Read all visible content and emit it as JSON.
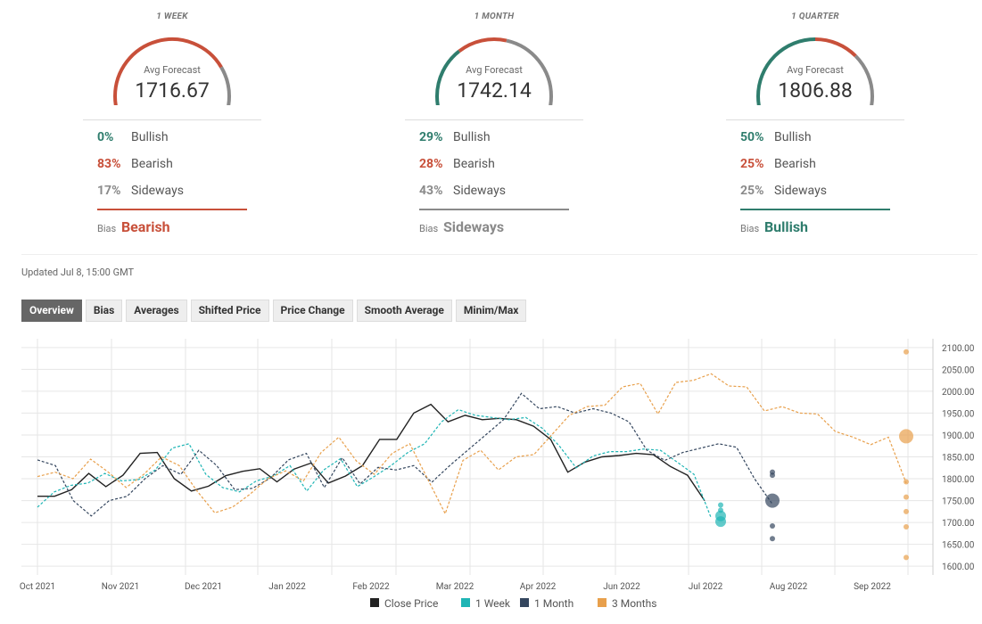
{
  "gauges": [
    {
      "period": "1 WEEK",
      "avg_label": "Avg Forecast",
      "avg": "1716.67",
      "bullish": "0%",
      "bearish": "83%",
      "sideways": "17%",
      "bullish_label": "Bullish",
      "bearish_label": "Bearish",
      "sideways_label": "Sideways",
      "bias_label": "Bias",
      "bias": "Bearish",
      "bias_color": "#c8503a"
    },
    {
      "period": "1 MONTH",
      "avg_label": "Avg Forecast",
      "avg": "1742.14",
      "bullish": "29%",
      "bearish": "28%",
      "sideways": "43%",
      "bullish_label": "Bullish",
      "bearish_label": "Bearish",
      "sideways_label": "Sideways",
      "bias_label": "Bias",
      "bias": "Sideways",
      "bias_color": "#8a8a8a"
    },
    {
      "period": "1 QUARTER",
      "avg_label": "Avg Forecast",
      "avg": "1806.88",
      "bullish": "50%",
      "bearish": "25%",
      "sideways": "25%",
      "bullish_label": "Bullish",
      "bearish_label": "Bearish",
      "sideways_label": "Sideways",
      "bias_label": "Bias",
      "bias": "Bullish",
      "bias_color": "#2f7d6d"
    }
  ],
  "colors": {
    "bullish": "#2f7d6d",
    "bearish": "#c8503a",
    "sideways": "#8a8a8a"
  },
  "updated": "Updated Jul 8, 15:00 GMT",
  "tabs": [
    "Overview",
    "Bias",
    "Averages",
    "Shifted Price",
    "Price Change",
    "Smooth Average",
    "Minim/Max"
  ],
  "legend": [
    {
      "label": "Close Price",
      "color": "#222222"
    },
    {
      "label": "1 Week",
      "color": "#1fb5b5"
    },
    {
      "label": "1 Month",
      "color": "#34465e"
    },
    {
      "label": "3 Months",
      "color": "#e8a04c"
    }
  ],
  "chart_data": {
    "type": "line",
    "ylim": [
      1580,
      2120
    ],
    "yticks": [
      "2100.00",
      "2050.00",
      "2000.00",
      "1950.00",
      "1900.00",
      "1850.00",
      "1800.00",
      "1750.00",
      "1700.00",
      "1650.00",
      "1600.00"
    ],
    "xticks": [
      "Oct 2021",
      "Nov 2021",
      "Dec 2021",
      "Jan 2022",
      "Feb 2022",
      "Mar 2022",
      "Apr 2022",
      "Jun 2022",
      "Jul 2022",
      "Aug 2022",
      "Sep 2022"
    ],
    "series": [
      {
        "name": "Close Price",
        "values": [
          1760,
          1760,
          1775,
          1812,
          1782,
          1808,
          1858,
          1860,
          1800,
          1772,
          1783,
          1807,
          1817,
          1823,
          1793,
          1822,
          1836,
          1790,
          1806,
          1830,
          1890,
          1890,
          1950,
          1970,
          1930,
          1945,
          1935,
          1938,
          1935,
          1920,
          1890,
          1815,
          1838,
          1850,
          1853,
          1858,
          1855,
          1828,
          1808,
          1750
        ]
      },
      {
        "name": "1 Week",
        "values": [
          1735,
          1770,
          1785,
          1790,
          1812,
          1795,
          1798,
          1820,
          1870,
          1880,
          1810,
          1780,
          1770,
          1795,
          1806,
          1830,
          1772,
          1820,
          1846,
          1782,
          1805,
          1830,
          1860,
          1880,
          1930,
          1958,
          1945,
          1940,
          1935,
          1940,
          1915,
          1875,
          1825,
          1852,
          1862,
          1862,
          1868,
          1865,
          1838,
          1810,
          1712
        ]
      },
      {
        "name": "1 Month",
        "values": [
          1843,
          1830,
          1750,
          1715,
          1750,
          1760,
          1800,
          1830,
          1810,
          1865,
          1830,
          1775,
          1778,
          1802,
          1843,
          1858,
          1780,
          1848,
          1788,
          1826,
          1820,
          1830,
          1792,
          1830,
          1865,
          1900,
          1935,
          1995,
          1960,
          1965,
          1950,
          1960,
          1950,
          1930,
          1865,
          1842,
          1860,
          1870,
          1880,
          1872,
          1800,
          1742
        ]
      },
      {
        "name": "3 Months",
        "values": [
          1805,
          1815,
          1800,
          1845,
          1815,
          1780,
          1810,
          1850,
          1830,
          1772,
          1722,
          1735,
          1765,
          1800,
          1818,
          1795,
          1860,
          1895,
          1840,
          1810,
          1858,
          1880,
          1800,
          1720,
          1842,
          1865,
          1820,
          1850,
          1855,
          1900,
          1945,
          1965,
          1968,
          2010,
          2018,
          1948,
          2020,
          2025,
          2040,
          2012,
          2010,
          1955,
          1965,
          1950,
          1948,
          1908,
          1895,
          1878,
          1895,
          1790
        ]
      }
    ],
    "forecast_points": [
      {
        "name": "1 Week",
        "color": "#1fb5b5",
        "values": [
          1740,
          1728,
          1715,
          1702
        ]
      },
      {
        "name": "1 Month",
        "color": "#34465e",
        "values": [
          1815,
          1808,
          1750,
          1692,
          1663
        ]
      },
      {
        "name": "3 Months",
        "color": "#e8a04c",
        "values": [
          2090,
          1897,
          1793,
          1758,
          1725,
          1690,
          1620
        ]
      }
    ]
  }
}
